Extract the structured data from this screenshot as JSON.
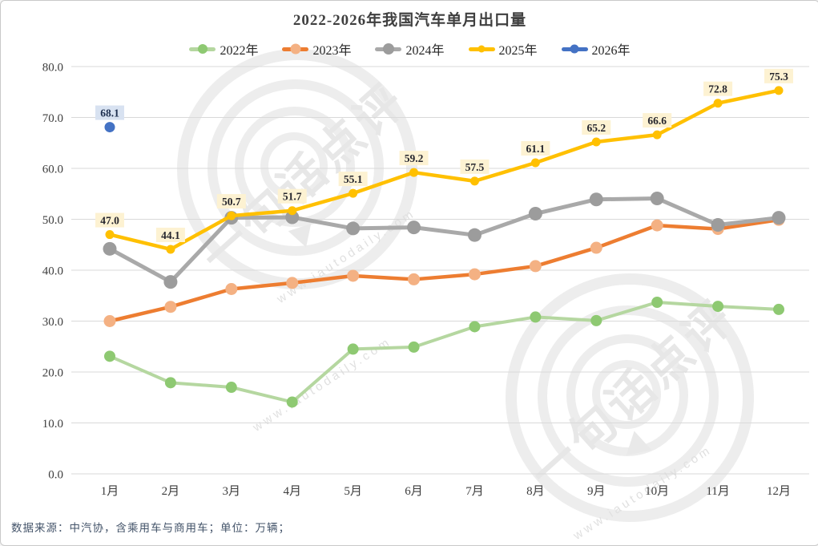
{
  "chart_data": {
    "type": "line",
    "title": "2022-2026年我国汽车单月出口量",
    "footnote": "数据来源：中汽协，含乘用车与商用车；单位：万辆；",
    "categories": [
      "1月",
      "2月",
      "3月",
      "4月",
      "5月",
      "6月",
      "7月",
      "8月",
      "9月",
      "10月",
      "11月",
      "12月"
    ],
    "ylim": [
      0,
      80
    ],
    "ytick_step": 10,
    "ytick_labels": [
      "0.0",
      "10.0",
      "20.0",
      "30.0",
      "40.0",
      "50.0",
      "60.0",
      "70.0",
      "80.0"
    ],
    "grid": true,
    "legend_position": "top",
    "series": [
      {
        "name": "2022年",
        "line_color": "#b5d7a0",
        "marker_color": "#8ec972",
        "line_width": 4,
        "marker_r": 7,
        "labels": false,
        "values": [
          23.1,
          17.9,
          17.0,
          14.1,
          24.5,
          24.9,
          28.9,
          30.8,
          30.1,
          33.7,
          32.9,
          32.3
        ]
      },
      {
        "name": "2023年",
        "line_color": "#ed7d31",
        "marker_color": "#f4b183",
        "line_width": 4.5,
        "marker_r": 7.5,
        "labels": false,
        "values": [
          30.0,
          32.8,
          36.3,
          37.5,
          38.9,
          38.2,
          39.2,
          40.8,
          44.4,
          48.8,
          48.1,
          49.9
        ]
      },
      {
        "name": "2024年",
        "line_color": "#a9a9a9",
        "marker_color": "#9c9c9c",
        "line_width": 5,
        "marker_r": 8.5,
        "labels": false,
        "values": [
          44.2,
          37.7,
          50.3,
          50.4,
          48.2,
          48.4,
          46.9,
          51.1,
          53.9,
          54.1,
          48.9,
          50.3
        ]
      },
      {
        "name": "2025年",
        "line_color": "#ffc000",
        "marker_color": "#ffc000",
        "line_width": 4.5,
        "marker_r": 5.5,
        "labels": true,
        "label_bg": "#fdf2d2",
        "label_color": "#26262e",
        "values": [
          47.0,
          44.1,
          50.7,
          51.7,
          55.1,
          59.2,
          57.5,
          61.1,
          65.2,
          66.6,
          72.8,
          75.3
        ]
      },
      {
        "name": "2026年",
        "line_color": "#4472c4",
        "marker_color": "#4472c4",
        "line_width": 4,
        "marker_r": 6.5,
        "labels": true,
        "label_bg": "#d8e2f1",
        "label_color": "#1f3050",
        "values": [
          68.1,
          null,
          null,
          null,
          null,
          null,
          null,
          null,
          null,
          null,
          null,
          null
        ]
      }
    ],
    "grid_color": "#d9d9d9",
    "axis_text_color": "#3d3d3d"
  },
  "watermark": {
    "brand": "一句话点评",
    "url": "www.iautodaily.com"
  }
}
